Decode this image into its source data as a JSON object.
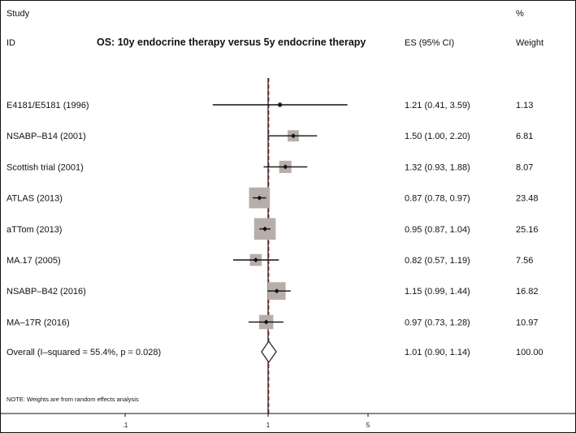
{
  "chart_data": {
    "type": "forest",
    "title": "OS: 10y endocrine therapy versus 5y endocrine therapy",
    "columns": {
      "study_top": "Study",
      "study": "ID",
      "es": "ES (95% CI)",
      "weight_top": "%",
      "weight": "Weight"
    },
    "studies": [
      {
        "label": "E4181/E5181 (1996)",
        "es": 1.21,
        "lo": 0.41,
        "hi": 3.59,
        "es_text": "1.21 (0.41, 3.59)",
        "weight": 1.13,
        "weight_text": "1.13"
      },
      {
        "label": "NSABP–B14 (2001)",
        "es": 1.5,
        "lo": 1.0,
        "hi": 2.2,
        "es_text": "1.50 (1.00, 2.20)",
        "weight": 6.81,
        "weight_text": "6.81"
      },
      {
        "label": "Scottish trial  (2001)",
        "es": 1.32,
        "lo": 0.93,
        "hi": 1.88,
        "es_text": "1.32 (0.93, 1.88)",
        "weight": 8.07,
        "weight_text": "8.07"
      },
      {
        "label": "ATLAS (2013)",
        "es": 0.87,
        "lo": 0.78,
        "hi": 0.97,
        "es_text": "0.87 (0.78, 0.97)",
        "weight": 23.48,
        "weight_text": "23.48"
      },
      {
        "label": "aTTom (2013)",
        "es": 0.95,
        "lo": 0.87,
        "hi": 1.04,
        "es_text": "0.95 (0.87, 1.04)",
        "weight": 25.16,
        "weight_text": "25.16"
      },
      {
        "label": "MA.17 (2005)",
        "es": 0.82,
        "lo": 0.57,
        "hi": 1.19,
        "es_text": "0.82 (0.57, 1.19)",
        "weight": 7.56,
        "weight_text": "7.56"
      },
      {
        "label": "NSABP–B42 (2016)",
        "es": 1.15,
        "lo": 0.99,
        "hi": 1.44,
        "es_text": "1.15 (0.99, 1.44)",
        "weight": 16.82,
        "weight_text": "16.82"
      },
      {
        "label": "MA–17R (2016)",
        "es": 0.97,
        "lo": 0.73,
        "hi": 1.28,
        "es_text": "0.97 (0.73, 1.28)",
        "weight": 10.97,
        "weight_text": "10.97"
      }
    ],
    "overall": {
      "label": "Overall  (I–squared = 55.4%, p = 0.028)",
      "es": 1.01,
      "lo": 0.9,
      "hi": 1.14,
      "es_text": "1.01 (0.90, 1.14)",
      "weight_text": "100.00"
    },
    "note": "NOTE: Weights are from random effects analysis",
    "x_scale": "log",
    "xlim": [
      0.1,
      5
    ],
    "x_ticks": [
      {
        "value": 0.1,
        "label": ".1"
      },
      {
        "value": 1,
        "label": "1"
      },
      {
        "value": 5,
        "label": "5"
      }
    ],
    "null_line": 1,
    "colors": {
      "box": "#b7aeab",
      "overall_line": "#7a1f1f",
      "ink": "#111111"
    }
  }
}
